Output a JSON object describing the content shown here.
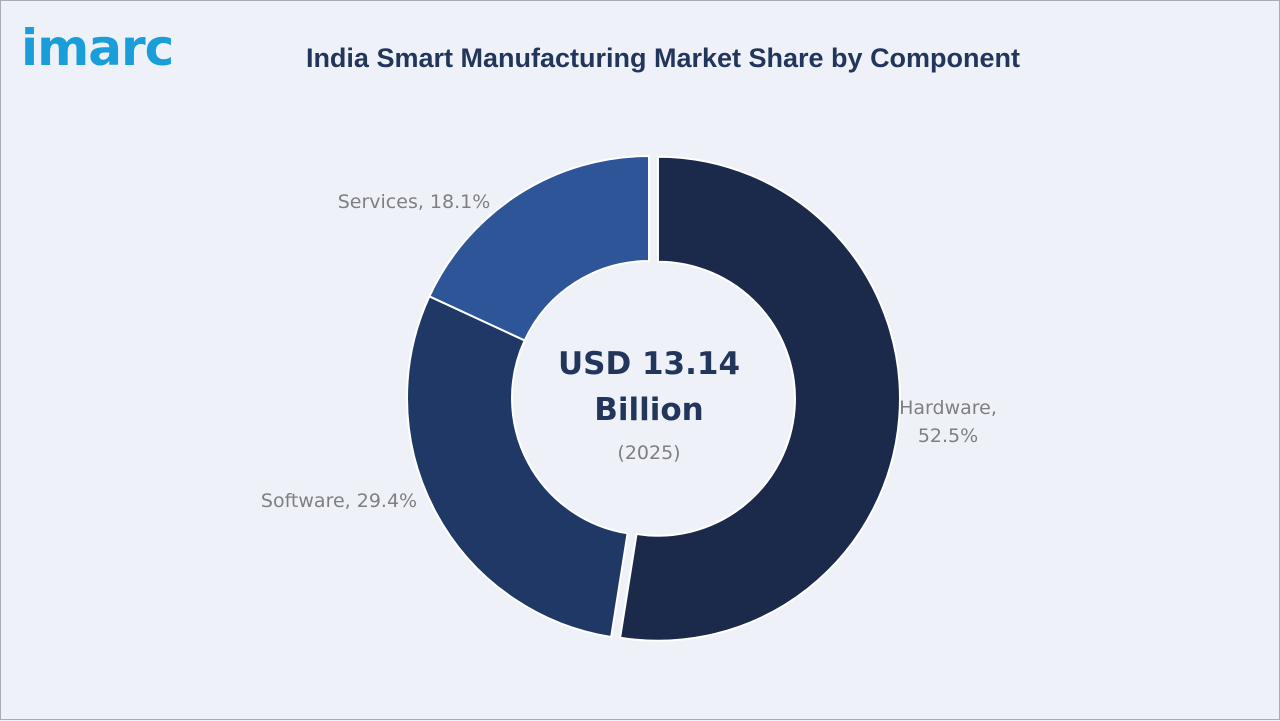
{
  "brand": {
    "logo_text": "imarc",
    "logo_color": "#1a9ed9"
  },
  "title": "India Smart Manufacturing Market Share by Component",
  "center": {
    "line1": "USD 13.14",
    "line2": "Billion",
    "line3": "(2025)"
  },
  "chart_data": {
    "type": "pie",
    "subtype": "donut",
    "title": "India Smart Manufacturing Market Share by Component",
    "unit": "%",
    "categories": [
      "Hardware",
      "Software",
      "Services"
    ],
    "values": [
      52.5,
      29.4,
      18.1
    ],
    "labels": [
      "Hardware,\n52.5%",
      "Software, 29.4%",
      "Services, 18.1%"
    ],
    "colors": [
      "#1b2a4a",
      "#1f3866",
      "#2e5597"
    ],
    "exploded": [
      "Hardware"
    ],
    "legend": "none",
    "center_text": [
      "USD 13.14",
      "Billion",
      "(2025)"
    ]
  }
}
